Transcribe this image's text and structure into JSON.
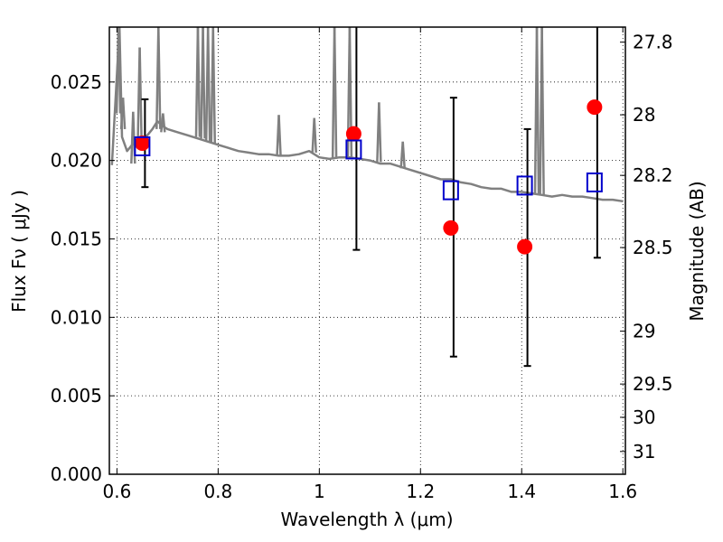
{
  "chart_data": {
    "type": "scatter",
    "xlabel": "Wavelength  λ (μm)",
    "ylabel": "Flux  Fν  ( μJy )",
    "y2label": "Magnitude (AB)",
    "xlim": [
      0.585,
      1.605
    ],
    "ylim": [
      0.0,
      0.0285
    ],
    "xticks": [
      0.6,
      0.8,
      1.0,
      1.2,
      1.4,
      1.6
    ],
    "xtick_labels": [
      "0.6",
      "0.8",
      "1",
      "1.2",
      "1.4",
      "1.6"
    ],
    "yticks": [
      0.0,
      0.005,
      0.01,
      0.015,
      0.02,
      0.025
    ],
    "ytick_labels": [
      "0.000",
      "0.005",
      "0.010",
      "0.015",
      "0.020",
      "0.025"
    ],
    "magnitude_ticks": [
      {
        "label": "27.8",
        "flux": 0.02754
      },
      {
        "label": "28",
        "flux": 0.02291
      },
      {
        "label": "28.2",
        "flux": 0.01905
      },
      {
        "label": "28.5",
        "flux": 0.01445
      },
      {
        "label": "29",
        "flux": 0.00912
      },
      {
        "label": "29.5",
        "flux": 0.00575
      },
      {
        "label": "30",
        "flux": 0.00363
      },
      {
        "label": "31",
        "flux": 0.00145
      }
    ],
    "grid": true,
    "series": [
      {
        "name": "SED model",
        "kind": "line",
        "color": "#808080",
        "x": [
          0.59,
          0.6,
          0.605,
          0.61,
          0.62,
          0.63,
          0.64,
          0.65,
          0.66,
          0.67,
          0.68,
          0.69,
          0.7,
          0.72,
          0.74,
          0.76,
          0.78,
          0.8,
          0.82,
          0.84,
          0.86,
          0.88,
          0.9,
          0.92,
          0.94,
          0.96,
          0.98,
          1.0,
          1.02,
          1.04,
          1.06,
          1.08,
          1.1,
          1.12,
          1.14,
          1.16,
          1.18,
          1.2,
          1.22,
          1.24,
          1.26,
          1.28,
          1.3,
          1.32,
          1.34,
          1.36,
          1.38,
          1.4,
          1.42,
          1.44,
          1.46,
          1.48,
          1.5,
          1.52,
          1.54,
          1.56,
          1.58,
          1.6
        ],
        "y": [
          0.0197,
          0.0255,
          0.0285,
          0.0215,
          0.0206,
          0.021,
          0.0213,
          0.0214,
          0.0216,
          0.022,
          0.0225,
          0.0222,
          0.022,
          0.0218,
          0.0216,
          0.0214,
          0.0212,
          0.021,
          0.0208,
          0.0206,
          0.0205,
          0.0204,
          0.0204,
          0.0203,
          0.0203,
          0.0204,
          0.0206,
          0.0202,
          0.0201,
          0.0202,
          0.0202,
          0.0201,
          0.02,
          0.0198,
          0.0198,
          0.0196,
          0.0194,
          0.0192,
          0.019,
          0.0188,
          0.0188,
          0.0186,
          0.0185,
          0.0183,
          0.0182,
          0.0182,
          0.018,
          0.018,
          0.0179,
          0.0178,
          0.0177,
          0.0178,
          0.0177,
          0.0177,
          0.0176,
          0.0175,
          0.0175,
          0.0174
        ]
      },
      {
        "name": "SED emission spikes",
        "kind": "segments",
        "color": "#808080",
        "segments": [
          {
            "x": 0.603,
            "y0": 0.023,
            "y1": 0.0285
          },
          {
            "x": 0.612,
            "y0": 0.022,
            "y1": 0.024
          },
          {
            "x": 0.632,
            "y0": 0.0198,
            "y1": 0.0231
          },
          {
            "x": 0.645,
            "y0": 0.0214,
            "y1": 0.0272
          },
          {
            "x": 0.682,
            "y0": 0.022,
            "y1": 0.0285
          },
          {
            "x": 0.691,
            "y0": 0.0218,
            "y1": 0.023
          },
          {
            "x": 0.76,
            "y0": 0.0215,
            "y1": 0.0285
          },
          {
            "x": 0.77,
            "y0": 0.0214,
            "y1": 0.0285
          },
          {
            "x": 0.78,
            "y0": 0.0212,
            "y1": 0.0285
          },
          {
            "x": 0.79,
            "y0": 0.0211,
            "y1": 0.0285
          },
          {
            "x": 0.92,
            "y0": 0.0203,
            "y1": 0.0229
          },
          {
            "x": 0.99,
            "y0": 0.0205,
            "y1": 0.0227
          },
          {
            "x": 1.03,
            "y0": 0.0201,
            "y1": 0.0285
          },
          {
            "x": 1.06,
            "y0": 0.0202,
            "y1": 0.0285
          },
          {
            "x": 1.118,
            "y0": 0.0199,
            "y1": 0.0237
          },
          {
            "x": 1.165,
            "y0": 0.0195,
            "y1": 0.0212
          },
          {
            "x": 1.43,
            "y0": 0.0179,
            "y1": 0.0285
          },
          {
            "x": 1.44,
            "y0": 0.0178,
            "y1": 0.0285
          }
        ]
      },
      {
        "name": "Observed flux",
        "kind": "points",
        "marker": "circle",
        "color": "#ff0000",
        "x": [
          0.65,
          1.068,
          1.26,
          1.406,
          1.544
        ],
        "y": [
          0.0211,
          0.0217,
          0.0157,
          0.0145,
          0.0234
        ]
      },
      {
        "name": "Model flux (errorbars)",
        "kind": "points",
        "marker": "square",
        "color": "#0000cc",
        "errorbar_color": "#000000",
        "x": [
          0.65,
          1.068,
          1.26,
          1.406,
          1.544
        ],
        "y": [
          0.0209,
          0.0207,
          0.0181,
          0.0184,
          0.0186
        ],
        "y_low": [
          0.0183,
          0.0143,
          0.0075,
          0.0069,
          0.0138
        ],
        "y_high": [
          0.0239,
          0.0285,
          0.024,
          0.022,
          0.0285
        ]
      }
    ]
  }
}
